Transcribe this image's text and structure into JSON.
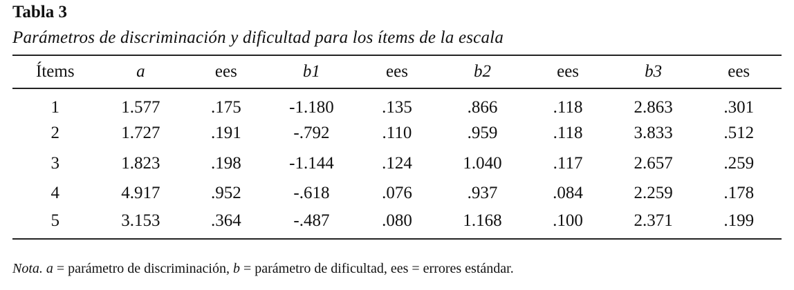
{
  "header": {
    "title": "Tabla 3",
    "subtitle": "Parámetros de discriminación y dificultad para los ítems de la escala"
  },
  "table": {
    "columns": [
      "Ítems",
      "a",
      "ees",
      "b1",
      "ees",
      "b2",
      "ees",
      "b3",
      "ees"
    ],
    "rows": [
      [
        "1",
        "1.577",
        ".175",
        "-1.180",
        ".135",
        ".866",
        ".118",
        "2.863",
        ".301"
      ],
      [
        "2",
        "1.727",
        ".191",
        "-.792",
        ".110",
        ".959",
        ".118",
        "3.833",
        ".512"
      ],
      [
        "3",
        "1.823",
        ".198",
        "-1.144",
        ".124",
        "1.040",
        ".117",
        "2.657",
        ".259"
      ],
      [
        "4",
        "4.917",
        ".952",
        "-.618",
        ".076",
        ".937",
        ".084",
        "2.259",
        ".178"
      ],
      [
        "5",
        "3.153",
        ".364",
        "-.487",
        ".080",
        "1.168",
        ".100",
        "2.371",
        ".199"
      ]
    ]
  },
  "note": [
    "Nota.",
    "a",
    "= parámetro de discriminación,",
    "b",
    "= parámetro de dificultad, ees = errores estándar."
  ]
}
